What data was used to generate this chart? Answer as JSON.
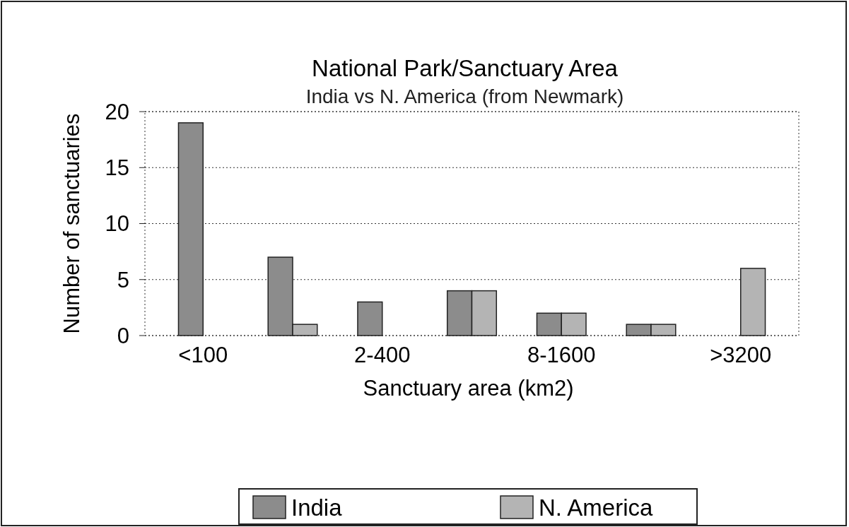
{
  "chart_data": {
    "type": "bar",
    "title": "National Park/Sanctuary Area",
    "subtitle": "India vs N. America (from Newmark)",
    "xlabel": "Sanctuary area (km2)",
    "ylabel": "Number of sanctuaries",
    "categories": [
      "<100",
      null,
      "2-400",
      null,
      "8-1600",
      null,
      ">3200"
    ],
    "series": [
      {
        "name": "India",
        "color": "#8c8c8c",
        "values": [
          19,
          7,
          3,
          4,
          2,
          1,
          0
        ]
      },
      {
        "name": "N. America",
        "color": "#b4b4b4",
        "values": [
          0,
          1,
          0,
          4,
          2,
          1,
          6
        ]
      }
    ],
    "ylim": [
      0,
      20
    ],
    "yticks": [
      0,
      5,
      10,
      15,
      20
    ],
    "grid": "y",
    "legend": "bottom"
  }
}
